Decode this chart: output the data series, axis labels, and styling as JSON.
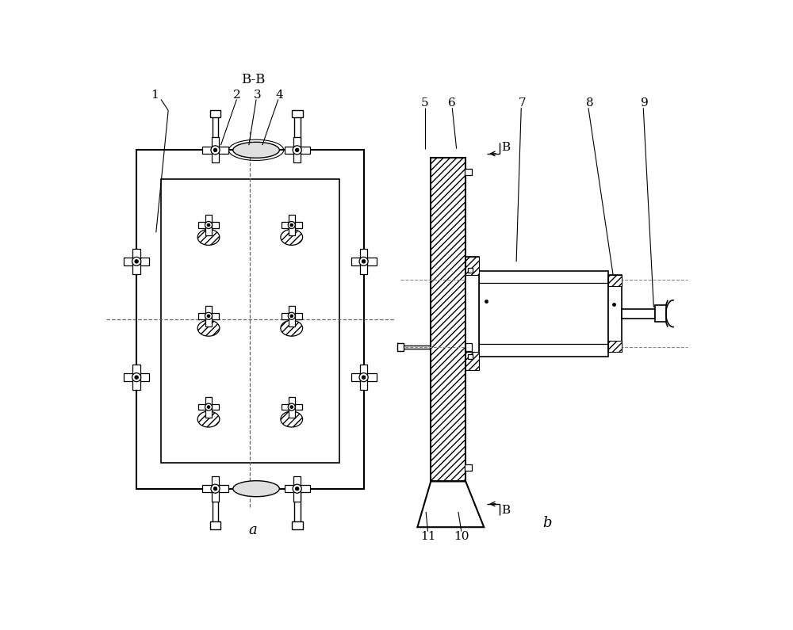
{
  "bg_color": "#ffffff",
  "line_color": "#000000",
  "fig_width": 10.0,
  "fig_height": 7.95,
  "label_a": "a",
  "label_b": "b",
  "label_BB": "B-B",
  "label_B_top": "B",
  "label_B_bot": "B"
}
